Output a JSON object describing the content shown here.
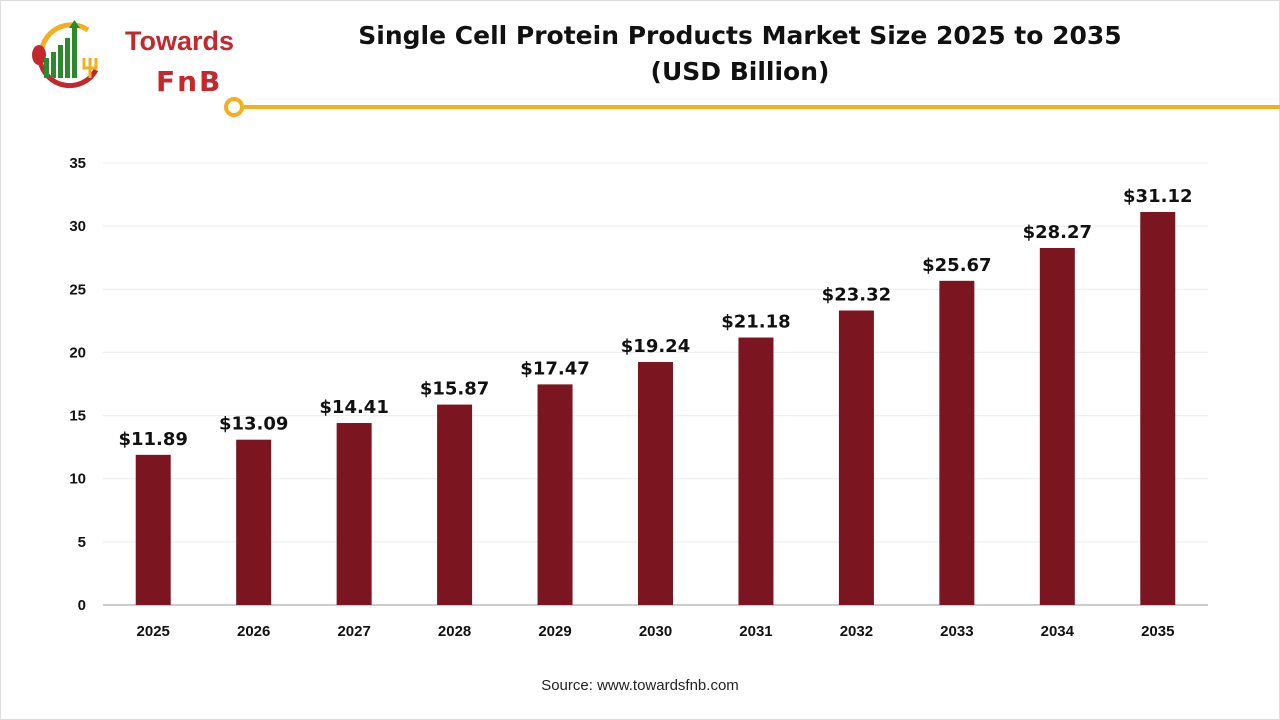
{
  "logo": {
    "line1": "Towards",
    "line2": "FnB"
  },
  "chart_data": {
    "type": "bar",
    "title": "Single Cell Protein Products Market Size 2025 to 2035",
    "subtitle": "(USD Billion)",
    "categories": [
      "2025",
      "2026",
      "2027",
      "2028",
      "2029",
      "2030",
      "2031",
      "2032",
      "2033",
      "2034",
      "2035"
    ],
    "values": [
      11.89,
      13.09,
      14.41,
      15.87,
      17.47,
      19.24,
      21.18,
      23.32,
      25.67,
      28.27,
      31.12
    ],
    "data_labels": [
      "$11.89",
      "$13.09",
      "$14.41",
      "$15.87",
      "$17.47",
      "$19.24",
      "$21.18",
      "$23.32",
      "$25.67",
      "$28.27",
      "$31.12"
    ],
    "ylim": [
      0,
      35
    ],
    "yticks": [
      "0",
      "5",
      "10",
      "15",
      "20",
      "25",
      "30",
      "35"
    ],
    "grid": true,
    "bar_color": "#7b1620",
    "xlabel": "",
    "ylabel": ""
  },
  "source": "Source: www.towardsfnb.com"
}
